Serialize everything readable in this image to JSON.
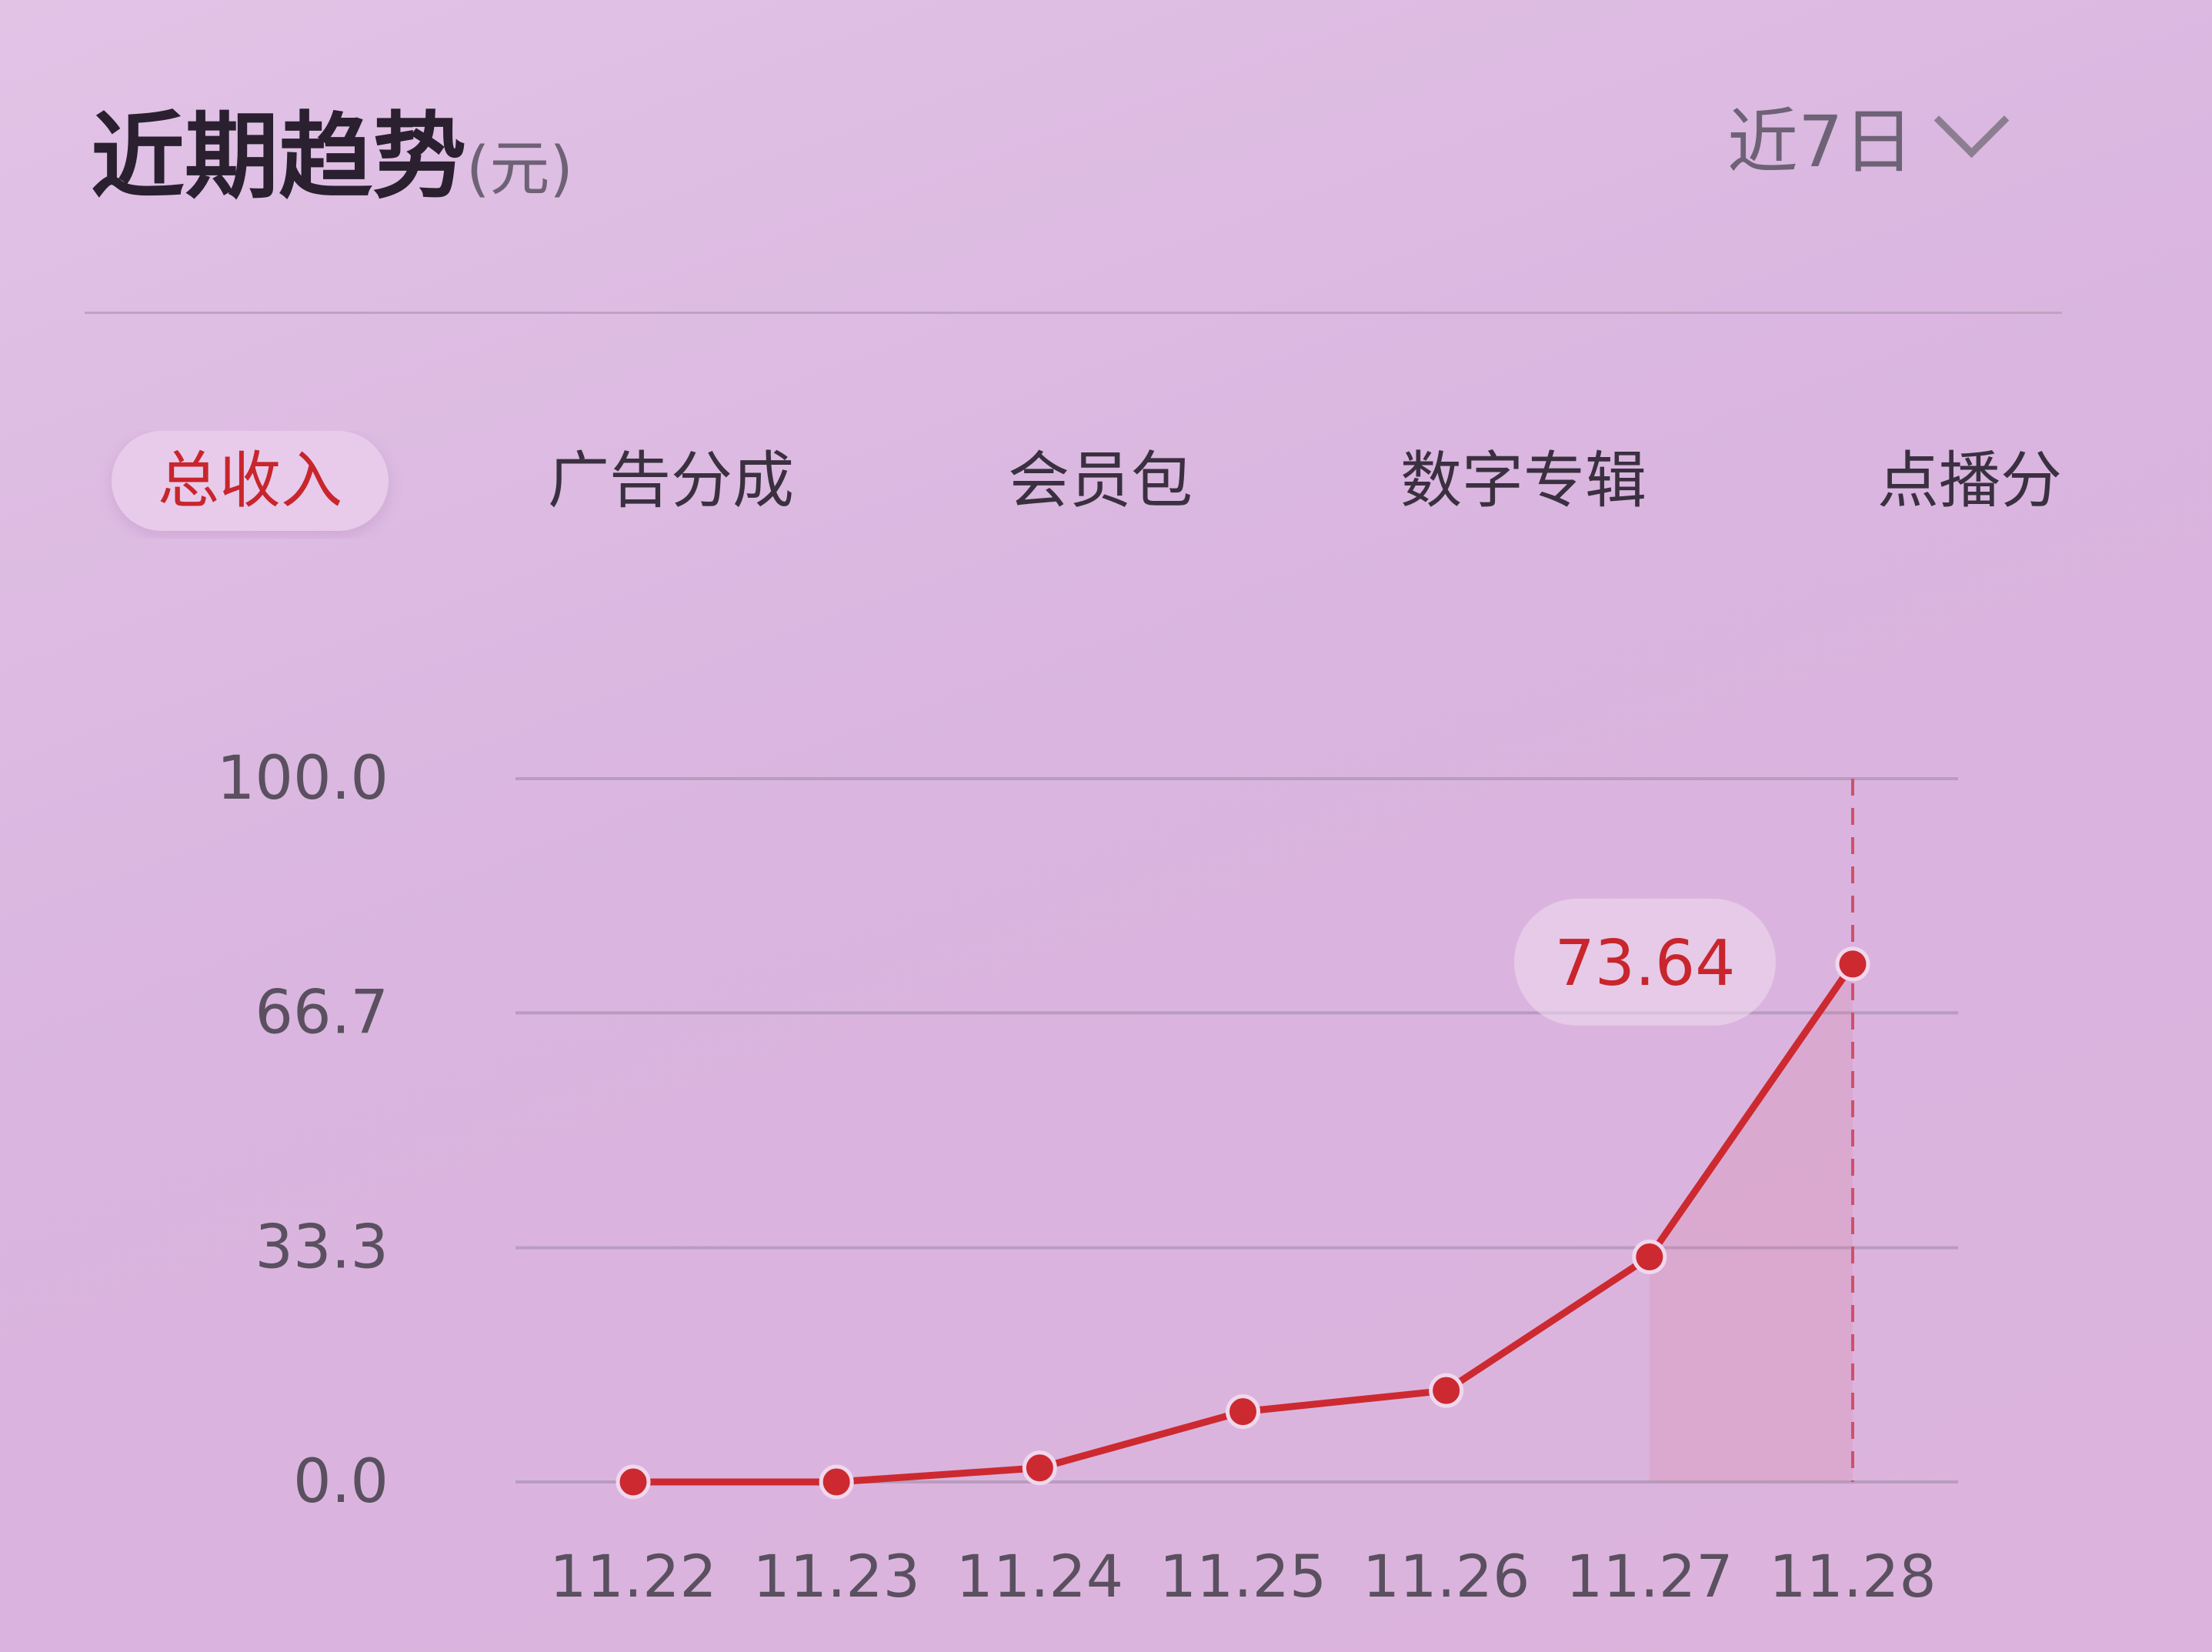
{
  "header": {
    "title": "近期趋势",
    "unit": "(元)",
    "range_label": "近7日"
  },
  "tabs": [
    {
      "label": "总收入",
      "active": true
    },
    {
      "label": "广告分成",
      "active": false
    },
    {
      "label": "会员包",
      "active": false
    },
    {
      "label": "数字专辑",
      "active": false
    },
    {
      "label": "点播分",
      "active": false
    }
  ],
  "chart_data": {
    "type": "line",
    "categories": [
      "11.22",
      "11.23",
      "11.24",
      "11.25",
      "11.26",
      "11.27",
      "11.28"
    ],
    "series": [
      {
        "values": [
          0,
          0,
          2,
          10,
          13,
          32,
          73.64
        ],
        "color": "#cc2a30"
      }
    ],
    "yticks": [
      "0.0",
      "33.3",
      "66.7",
      "100.0"
    ],
    "ylim": [
      0,
      100
    ],
    "grid": true,
    "highlight": {
      "category": "11.28",
      "label": "73.64"
    }
  }
}
